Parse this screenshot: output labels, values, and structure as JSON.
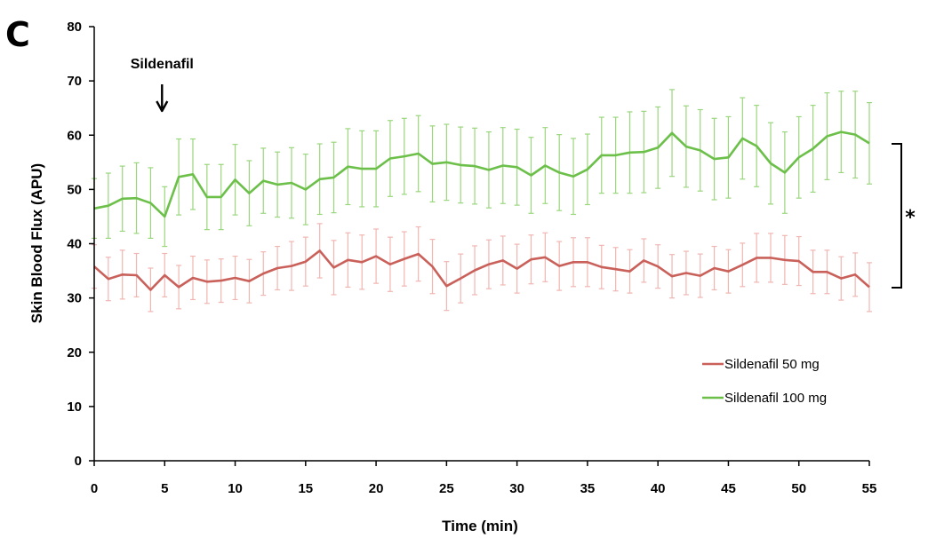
{
  "chart_data": {
    "type": "line",
    "panel_label": "C",
    "annotation": "Sildenafil",
    "annotation_x": 5,
    "significance_marker": "*",
    "xlabel": "Time (min)",
    "ylabel": "Skin Blood Flux (APU)",
    "xlim": [
      0,
      55
    ],
    "ylim": [
      0,
      80
    ],
    "xticks": [
      0,
      5,
      10,
      15,
      20,
      25,
      30,
      35,
      40,
      45,
      50,
      55
    ],
    "yticks": [
      0,
      10,
      20,
      30,
      40,
      50,
      60,
      70,
      80
    ],
    "grid": false,
    "legend_position": "bottom-right",
    "x": [
      0,
      1,
      2,
      3,
      4,
      5,
      6,
      7,
      8,
      9,
      10,
      11,
      12,
      13,
      14,
      15,
      16,
      17,
      18,
      19,
      20,
      21,
      22,
      23,
      24,
      25,
      26,
      27,
      28,
      29,
      30,
      31,
      32,
      33,
      34,
      35,
      36,
      37,
      38,
      39,
      40,
      41,
      42,
      43,
      44,
      45,
      46,
      47,
      48,
      49,
      50,
      51,
      52,
      53,
      54,
      55
    ],
    "series": [
      {
        "name": "Sildenafil 50 mg",
        "color": "#c9605a",
        "errorbar_color": "#f0b6b2",
        "values": [
          35.8,
          33.5,
          34.3,
          34.2,
          31.5,
          34.2,
          32.0,
          33.7,
          33.0,
          33.2,
          33.7,
          33.1,
          34.5,
          35.5,
          35.9,
          36.7,
          38.7,
          35.6,
          37.0,
          36.6,
          37.7,
          36.2,
          37.2,
          38.1,
          35.8,
          32.2,
          33.6,
          35.1,
          36.2,
          36.9,
          35.4,
          37.1,
          37.5,
          35.9,
          36.6,
          36.6,
          35.7,
          35.3,
          34.9,
          36.9,
          35.8,
          34.0,
          34.6,
          34.1,
          35.5,
          34.9,
          36.1,
          37.4,
          37.4,
          37.0,
          36.8,
          34.8,
          34.8,
          33.6,
          34.3,
          32.0
        ],
        "errors": [
          4,
          4,
          4.5,
          4,
          4,
          4,
          4,
          4,
          4,
          4,
          4,
          4,
          4,
          4,
          4.5,
          4.5,
          5,
          5,
          5,
          5,
          5,
          5,
          5,
          5,
          5,
          4.5,
          4.5,
          4.5,
          4.5,
          4.5,
          4.5,
          4.5,
          4.5,
          4.5,
          4.5,
          4.5,
          4,
          4,
          4,
          4,
          4,
          4,
          4,
          4,
          4,
          4,
          4,
          4.5,
          4.5,
          4.5,
          4.5,
          4,
          4,
          4,
          4,
          4.5
        ]
      },
      {
        "name": "Sildenafil 100 mg",
        "color": "#6cc04a",
        "errorbar_color": "#9ad67c",
        "values": [
          46.5,
          47.0,
          48.3,
          48.4,
          47.5,
          45.0,
          52.3,
          52.8,
          48.6,
          48.6,
          51.8,
          49.3,
          51.6,
          50.9,
          51.2,
          50.0,
          51.9,
          52.2,
          54.2,
          53.8,
          53.8,
          55.7,
          56.1,
          56.6,
          54.7,
          55.0,
          54.5,
          54.3,
          53.6,
          54.4,
          54.1,
          52.6,
          54.4,
          53.1,
          52.4,
          53.7,
          56.3,
          56.3,
          56.8,
          56.9,
          57.7,
          60.4,
          57.9,
          57.2,
          55.6,
          55.9,
          59.4,
          58.0,
          54.8,
          53.1,
          55.9,
          57.5,
          59.8,
          60.6,
          60.1,
          58.5
        ],
        "errors": [
          5.5,
          6,
          6,
          6.5,
          6.5,
          5.5,
          7,
          6.5,
          6,
          6,
          6.5,
          6,
          6,
          6,
          6.5,
          6.5,
          6.5,
          6.5,
          7,
          7,
          7,
          7,
          7,
          7,
          7,
          7,
          7,
          7,
          7,
          7,
          7,
          7,
          7,
          7,
          7,
          6.5,
          7,
          7,
          7.5,
          7.5,
          7.5,
          8,
          7.5,
          7.5,
          7.5,
          7.5,
          7.5,
          7.5,
          7.5,
          7.5,
          7.5,
          8,
          8,
          7.5,
          8,
          7.5
        ]
      }
    ]
  }
}
